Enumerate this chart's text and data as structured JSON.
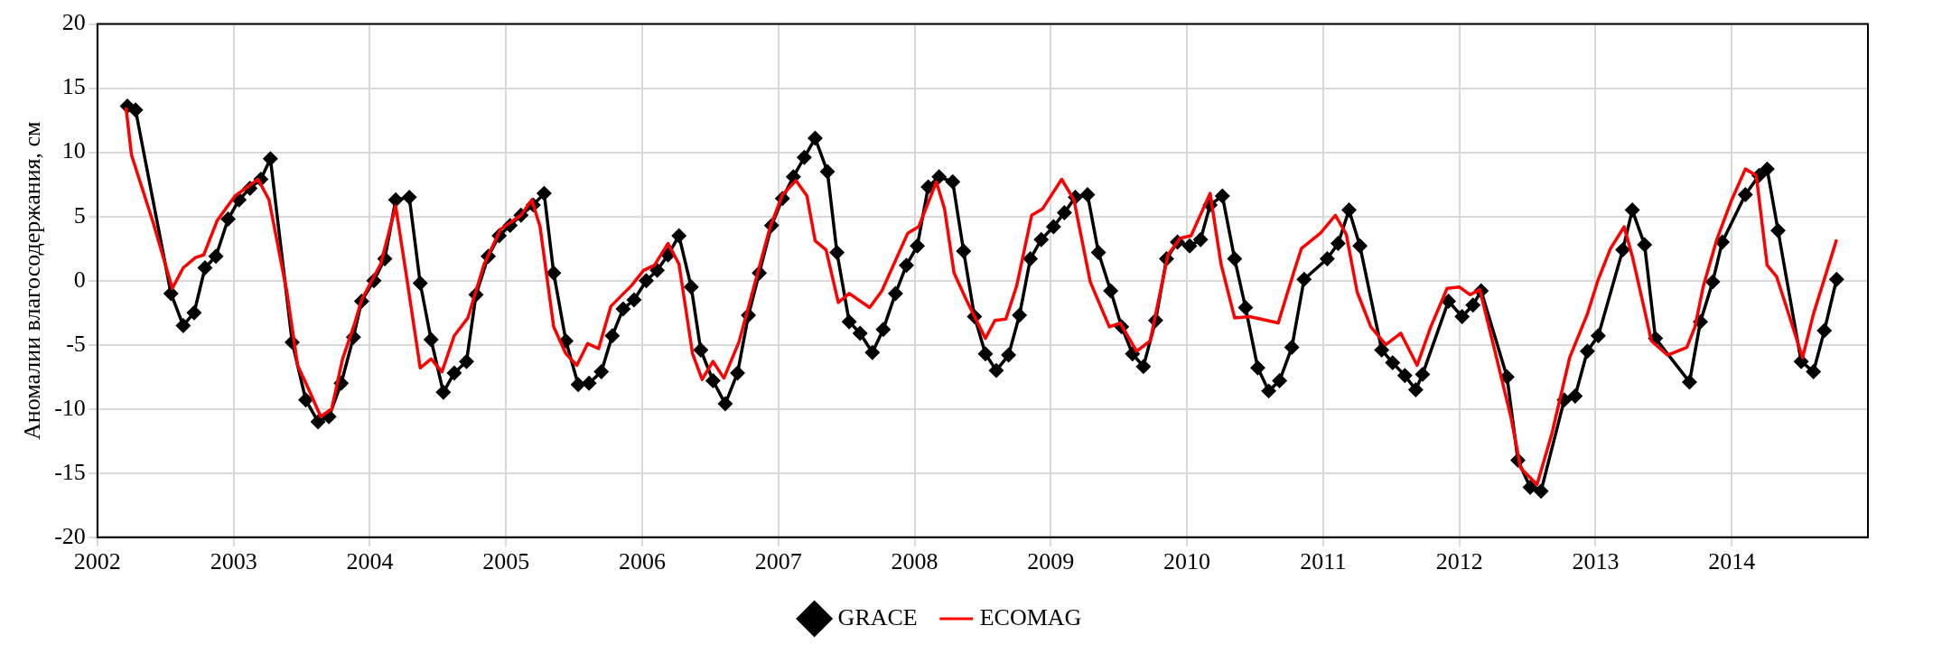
{
  "chart_data": {
    "type": "line",
    "ylabel": "Аномалии влагосодержания, см",
    "xlim": [
      2002,
      2015
    ],
    "xticks": [
      2002,
      2003,
      2004,
      2005,
      2006,
      2007,
      2008,
      2009,
      2010,
      2011,
      2012,
      2013,
      2014
    ],
    "ylim": [
      -20,
      20
    ],
    "yticks": [
      -20,
      -15,
      -10,
      -5,
      0,
      5,
      10,
      15,
      20
    ],
    "grid": true,
    "legend": "bottom",
    "series": [
      {
        "name": "GRACE",
        "color": "#000000",
        "marker": "diamond",
        "x": [
          2002.22,
          2002.28,
          2002.54,
          2002.63,
          2002.71,
          2002.79,
          2002.87,
          2002.96,
          2003.04,
          2003.12,
          2003.2,
          2003.27,
          2003.43,
          2003.53,
          2003.62,
          2003.7,
          2003.79,
          2003.88,
          2003.94,
          2004.03,
          2004.11,
          2004.19,
          2004.29,
          2004.37,
          2004.45,
          2004.54,
          2004.62,
          2004.71,
          2004.78,
          2004.87,
          2004.95,
          2005.03,
          2005.11,
          2005.2,
          2005.28,
          2005.35,
          2005.44,
          2005.53,
          2005.61,
          2005.7,
          2005.78,
          2005.86,
          2005.94,
          2006.03,
          2006.11,
          2006.19,
          2006.27,
          2006.36,
          2006.43,
          2006.52,
          2006.61,
          2006.7,
          2006.78,
          2006.86,
          2006.95,
          2007.03,
          2007.11,
          2007.19,
          2007.27,
          2007.36,
          2007.43,
          2007.52,
          2007.6,
          2007.69,
          2007.77,
          2007.86,
          2007.94,
          2008.02,
          2008.1,
          2008.18,
          2008.28,
          2008.36,
          2008.44,
          2008.52,
          2008.6,
          2008.69,
          2008.77,
          2008.85,
          2008.93,
          2009.02,
          2009.1,
          2009.18,
          2009.27,
          2009.35,
          2009.44,
          2009.52,
          2009.6,
          2009.68,
          2009.77,
          2009.85,
          2009.93,
          2010.02,
          2010.1,
          2010.17,
          2010.26,
          2010.35,
          2010.43,
          2010.52,
          2010.6,
          2010.68,
          2010.77,
          2010.86,
          2011.03,
          2011.11,
          2011.19,
          2011.27,
          2011.43,
          2011.51,
          2011.6,
          2011.68,
          2011.73,
          2011.92,
          2012.02,
          2012.1,
          2012.16,
          2012.35,
          2012.43,
          2012.52,
          2012.6,
          2012.77,
          2012.85,
          2012.94,
          2013.02,
          2013.2,
          2013.27,
          2013.36,
          2013.44,
          2013.69,
          2013.77,
          2013.86,
          2013.93,
          2014.1,
          2014.2,
          2014.26,
          2014.34,
          2014.51,
          2014.6,
          2014.68,
          2014.77
        ],
        "values": [
          13.6,
          13.3,
          -1.0,
          -3.5,
          -2.5,
          1.0,
          1.9,
          4.8,
          6.3,
          7.2,
          7.9,
          9.5,
          -4.8,
          -9.3,
          -11.0,
          -10.6,
          -8.0,
          -4.4,
          -1.6,
          0.0,
          1.7,
          6.3,
          6.5,
          -0.2,
          -4.6,
          -8.7,
          -7.2,
          -6.3,
          -1.1,
          1.9,
          3.5,
          4.3,
          5.1,
          5.9,
          6.8,
          0.6,
          -4.7,
          -8.1,
          -8.0,
          -7.1,
          -4.3,
          -2.2,
          -1.5,
          0.0,
          0.8,
          2.0,
          3.5,
          -0.5,
          -5.4,
          -7.8,
          -9.6,
          -7.2,
          -2.7,
          0.6,
          4.3,
          6.4,
          8.1,
          9.6,
          11.1,
          8.5,
          2.2,
          -3.2,
          -4.1,
          -5.6,
          -3.8,
          -1.0,
          1.2,
          2.7,
          7.3,
          8.1,
          7.7,
          2.3,
          -2.8,
          -5.7,
          -7.0,
          -5.8,
          -2.7,
          1.7,
          3.2,
          4.2,
          5.3,
          6.5,
          6.7,
          2.2,
          -0.8,
          -3.6,
          -5.7,
          -6.7,
          -3.1,
          1.7,
          3.0,
          2.7,
          3.2,
          5.9,
          6.6,
          1.7,
          -2.1,
          -6.8,
          -8.6,
          -7.8,
          -5.2,
          0.1,
          1.7,
          2.9,
          5.5,
          2.7,
          -5.4,
          -6.4,
          -7.4,
          -8.5,
          -7.3,
          -1.6,
          -2.8,
          -1.9,
          -0.8,
          -7.5,
          -14.0,
          -16.1,
          -16.4,
          -9.3,
          -9.0,
          -5.5,
          -4.3,
          2.4,
          5.5,
          2.8,
          -4.5,
          -7.9,
          -3.2,
          -0.1,
          3.0,
          6.7,
          8.2,
          8.7,
          3.9,
          -6.3,
          -7.1,
          -3.9,
          0.1
        ]
      },
      {
        "name": "ECOMAG",
        "color": "#ff0000",
        "marker": "none",
        "x": [
          2002.21,
          2002.25,
          2002.41,
          2002.55,
          2002.63,
          2002.72,
          2002.78,
          2002.88,
          2003.01,
          2003.18,
          2003.26,
          2003.39,
          2003.47,
          2003.54,
          2003.64,
          2003.72,
          2003.8,
          2003.89,
          2003.94,
          2004.08,
          2004.19,
          2004.27,
          2004.37,
          2004.45,
          2004.53,
          2004.62,
          2004.72,
          2004.84,
          2004.96,
          2005.11,
          2005.19,
          2005.25,
          2005.35,
          2005.44,
          2005.52,
          2005.6,
          2005.68,
          2005.77,
          2005.92,
          2006.01,
          2006.09,
          2006.19,
          2006.27,
          2006.37,
          2006.44,
          2006.52,
          2006.6,
          2006.71,
          2006.83,
          2006.94,
          2007.03,
          2007.13,
          2007.21,
          2007.27,
          2007.35,
          2007.44,
          2007.52,
          2007.67,
          2007.76,
          2007.95,
          2008.03,
          2008.16,
          2008.22,
          2008.29,
          2008.38,
          2008.52,
          2008.59,
          2008.67,
          2008.75,
          2008.86,
          2008.94,
          2009.08,
          2009.17,
          2009.29,
          2009.43,
          2009.51,
          2009.63,
          2009.73,
          2009.86,
          2009.95,
          2010.03,
          2010.17,
          2010.25,
          2010.35,
          2010.46,
          2010.67,
          2010.78,
          2010.84,
          2010.98,
          2011.09,
          2011.17,
          2011.25,
          2011.35,
          2011.46,
          2011.57,
          2011.69,
          2011.79,
          2011.91,
          2012.0,
          2012.08,
          2012.15,
          2012.25,
          2012.38,
          2012.45,
          2012.57,
          2012.68,
          2012.81,
          2012.94,
          2013.02,
          2013.11,
          2013.21,
          2013.27,
          2013.36,
          2013.41,
          2013.53,
          2013.67,
          2013.73,
          2013.79,
          2013.89,
          2014.0,
          2014.1,
          2014.18,
          2014.26,
          2014.33,
          2014.43,
          2014.52,
          2014.6,
          2014.77
        ],
        "values": [
          13.5,
          9.8,
          4.5,
          -0.6,
          1.0,
          1.8,
          2.0,
          4.7,
          6.6,
          7.9,
          6.3,
          -0.8,
          -6.6,
          -8.2,
          -10.6,
          -10.0,
          -6.1,
          -3.3,
          -1.5,
          1.3,
          5.8,
          0.3,
          -6.8,
          -6.1,
          -7.1,
          -4.3,
          -2.9,
          1.3,
          4.0,
          5.1,
          6.3,
          4.2,
          -3.6,
          -5.7,
          -6.6,
          -4.9,
          -5.3,
          -2.0,
          -0.4,
          0.8,
          1.2,
          2.9,
          1.3,
          -5.7,
          -7.7,
          -6.3,
          -7.6,
          -4.8,
          -0.1,
          4.2,
          6.7,
          7.8,
          6.6,
          3.1,
          2.4,
          -1.7,
          -1.0,
          -2.1,
          -0.8,
          3.7,
          4.2,
          7.7,
          5.6,
          0.6,
          -1.5,
          -4.5,
          -3.1,
          -3.0,
          -0.4,
          5.1,
          5.6,
          7.9,
          6.3,
          -0.1,
          -3.6,
          -3.3,
          -5.5,
          -4.7,
          2.0,
          3.3,
          3.5,
          6.8,
          1.3,
          -2.9,
          -2.8,
          -3.3,
          0.5,
          2.5,
          3.7,
          5.1,
          3.6,
          -0.9,
          -3.6,
          -5.0,
          -4.1,
          -6.6,
          -3.6,
          -0.6,
          -0.5,
          -1.1,
          -0.7,
          -5.0,
          -10.7,
          -14.6,
          -15.9,
          -11.9,
          -6.0,
          -2.6,
          0.1,
          2.5,
          4.2,
          1.9,
          -2.3,
          -4.7,
          -5.8,
          -5.2,
          -3.6,
          -0.5,
          3.2,
          6.3,
          8.7,
          8.2,
          1.2,
          0.3,
          -3.0,
          -6.0,
          -2.6,
          3.2
        ]
      }
    ]
  }
}
